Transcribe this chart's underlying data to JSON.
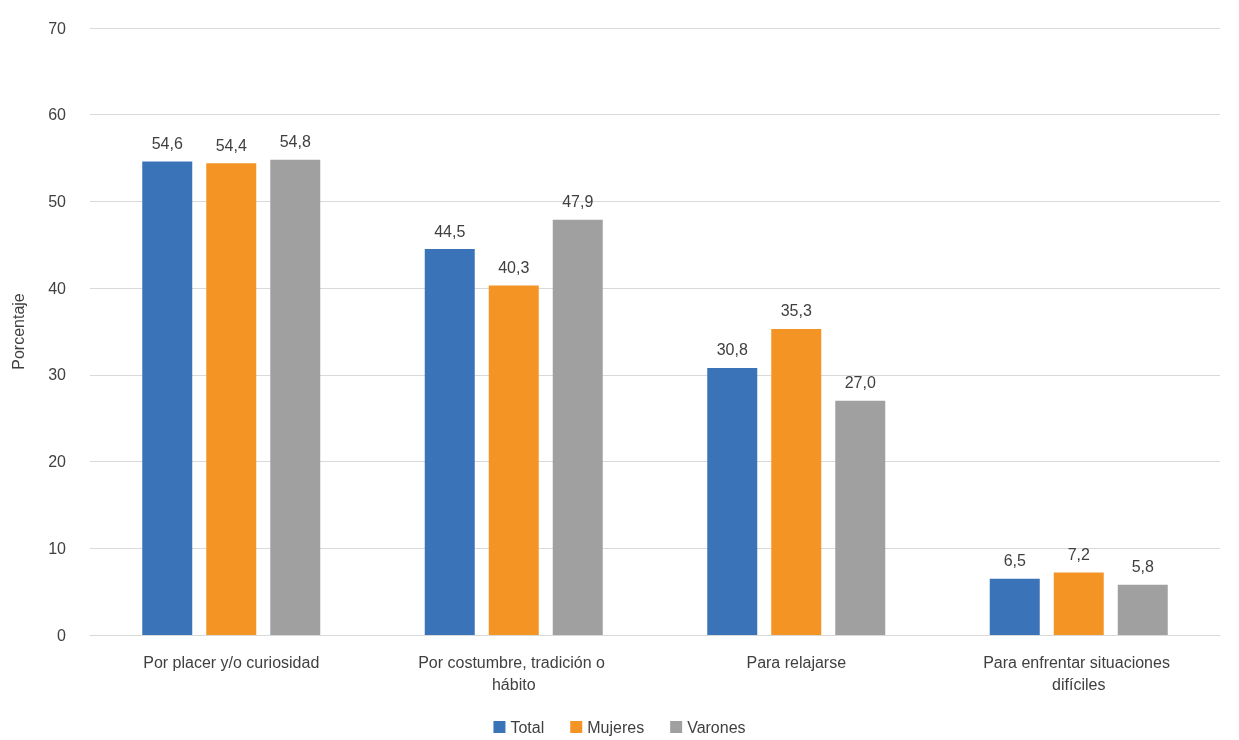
{
  "chart_data": {
    "type": "bar",
    "ylabel": "Porcentaje",
    "categories": [
      "Por placer y/o curiosidad",
      "Por costumbre, tradición o hábito",
      "Para relajarse",
      "Para enfrentar situaciones difíciles"
    ],
    "series": [
      {
        "name": "Total",
        "color": "#3a73b8",
        "values": [
          54.6,
          44.5,
          30.8,
          6.5
        ],
        "value_labels": [
          "54,6",
          "44,5",
          "30,8",
          "6,5"
        ]
      },
      {
        "name": "Mujeres",
        "color": "#f39425",
        "values": [
          54.4,
          40.3,
          35.3,
          7.2
        ],
        "value_labels": [
          "54,4",
          "40,3",
          "35,3",
          "7,2"
        ]
      },
      {
        "name": "Varones",
        "color": "#a0a0a0",
        "values": [
          54.8,
          47.9,
          27.0,
          5.8
        ],
        "value_labels": [
          "54,8",
          "47,9",
          "27,0",
          "5,8"
        ]
      }
    ],
    "ylim": [
      0,
      70
    ],
    "yticks": [
      0,
      10,
      20,
      30,
      40,
      50,
      60,
      70
    ],
    "grid": "y",
    "legend": "bottom"
  }
}
